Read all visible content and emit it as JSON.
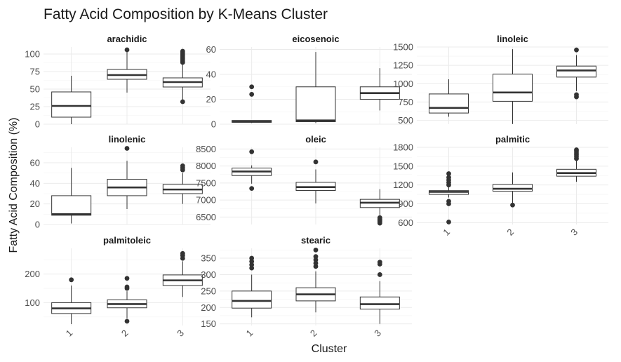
{
  "chart_data": {
    "type": "boxplot",
    "title": "Fatty Acid Composition by K-Means Cluster",
    "xlabel": "Cluster",
    "ylabel": "Fatty Acid Composition (%)",
    "categories": [
      "1",
      "2",
      "3"
    ],
    "facet_layout": {
      "columns": 3,
      "rows": 3
    },
    "panels": [
      {
        "name": "arachidic",
        "ylim": [
          0,
          110
        ],
        "yticks": [
          0,
          25,
          50,
          75,
          100
        ],
        "boxes": [
          {
            "cluster": "1",
            "min": 0,
            "q1": 10,
            "median": 26,
            "q3": 46,
            "max": 69,
            "outliers": []
          },
          {
            "cluster": "2",
            "min": 45,
            "q1": 64,
            "median": 70,
            "q3": 78,
            "max": 105,
            "outliers": [
              106
            ]
          },
          {
            "cluster": "3",
            "min": 34,
            "q1": 53,
            "median": 60,
            "q3": 66,
            "max": 85,
            "outliers": [
              32,
              88,
              90,
              92,
              94,
              96,
              98,
              100,
              102,
              104
            ]
          }
        ]
      },
      {
        "name": "eicosenoic",
        "ylim": [
          0,
          62
        ],
        "yticks": [
          0,
          20,
          40,
          60
        ],
        "boxes": [
          {
            "cluster": "1",
            "min": 1,
            "q1": 1.5,
            "median": 2,
            "q3": 3,
            "max": 3,
            "outliers": [
              24,
              30
            ]
          },
          {
            "cluster": "2",
            "min": 1,
            "q1": 2,
            "median": 3,
            "q3": 30,
            "max": 58,
            "outliers": []
          },
          {
            "cluster": "3",
            "min": 11,
            "q1": 20,
            "median": 25,
            "q3": 30,
            "max": 45,
            "outliers": []
          }
        ]
      },
      {
        "name": "linoleic",
        "ylim": [
          448,
          1500
        ],
        "yticks": [
          500,
          750,
          1000,
          1250,
          1500
        ],
        "boxes": [
          {
            "cluster": "1",
            "min": 550,
            "q1": 600,
            "median": 670,
            "q3": 860,
            "max": 1060,
            "outliers": []
          },
          {
            "cluster": "2",
            "min": 450,
            "q1": 760,
            "median": 880,
            "q3": 1130,
            "max": 1470,
            "outliers": []
          },
          {
            "cluster": "3",
            "min": 900,
            "q1": 1090,
            "median": 1180,
            "q3": 1240,
            "max": 1390,
            "outliers": [
              820,
              850,
              1460
            ]
          }
        ]
      },
      {
        "name": "linolenic",
        "ylim": [
          0,
          75
        ],
        "yticks": [
          0,
          20,
          40,
          60
        ],
        "boxes": [
          {
            "cluster": "1",
            "min": 1,
            "q1": 9,
            "median": 10,
            "q3": 28,
            "max": 55,
            "outliers": []
          },
          {
            "cluster": "2",
            "min": 15,
            "q1": 28,
            "median": 36,
            "q3": 44,
            "max": 62,
            "outliers": [
              74
            ]
          },
          {
            "cluster": "3",
            "min": 20,
            "q1": 30,
            "median": 34,
            "q3": 39,
            "max": 50,
            "outliers": [
              53,
              55,
              57
            ]
          }
        ]
      },
      {
        "name": "oleic",
        "ylim": [
          6280,
          8550
        ],
        "yticks": [
          6500,
          7000,
          7500,
          8000,
          8500
        ],
        "boxes": [
          {
            "cluster": "1",
            "min": 7480,
            "q1": 7720,
            "median": 7840,
            "q3": 7940,
            "max": 8020,
            "outliers": [
              7340,
              8420
            ]
          },
          {
            "cluster": "2",
            "min": 6900,
            "q1": 7280,
            "median": 7380,
            "q3": 7520,
            "max": 7900,
            "outliers": [
              8120
            ]
          },
          {
            "cluster": "3",
            "min": 6560,
            "q1": 6780,
            "median": 6920,
            "q3": 7020,
            "max": 7320,
            "outliers": [
              6320,
              6360,
              6400,
              6440,
              6480
            ]
          }
        ]
      },
      {
        "name": "palmitic",
        "ylim": [
          570,
          1800
        ],
        "yticks": [
          600,
          900,
          1200,
          1500,
          1800
        ],
        "boxes": [
          {
            "cluster": "1",
            "min": 1000,
            "q1": 1050,
            "median": 1090,
            "q3": 1110,
            "max": 1180,
            "outliers": [
              610,
              900,
              940,
              1200,
              1240,
              1280,
              1320,
              1380
            ]
          },
          {
            "cluster": "2",
            "min": 900,
            "q1": 1100,
            "median": 1140,
            "q3": 1210,
            "max": 1400,
            "outliers": [
              880
            ]
          },
          {
            "cluster": "3",
            "min": 1250,
            "q1": 1340,
            "median": 1390,
            "q3": 1450,
            "max": 1600,
            "outliers": [
              1620,
              1650,
              1680,
              1710,
              1740,
              1760
            ]
          }
        ]
      },
      {
        "name": "palmitoleic",
        "ylim": [
          20,
          290
        ],
        "yticks": [
          100,
          200
        ],
        "boxes": [
          {
            "cluster": "1",
            "min": 25,
            "q1": 62,
            "median": 80,
            "q3": 100,
            "max": 160,
            "outliers": [
              180
            ]
          },
          {
            "cluster": "2",
            "min": 45,
            "q1": 82,
            "median": 95,
            "q3": 110,
            "max": 140,
            "outliers": [
              35,
              150,
              155,
              185
            ]
          },
          {
            "cluster": "3",
            "min": 120,
            "q1": 160,
            "median": 178,
            "q3": 197,
            "max": 245,
            "outliers": [
              255,
              265,
              272
            ]
          }
        ]
      },
      {
        "name": "stearic",
        "ylim": [
          145,
          380
        ],
        "yticks": [
          150,
          200,
          250,
          300,
          350
        ],
        "boxes": [
          {
            "cluster": "1",
            "min": 170,
            "q1": 198,
            "median": 220,
            "q3": 250,
            "max": 300,
            "outliers": [
              320,
              330,
              340,
              350
            ]
          },
          {
            "cluster": "2",
            "min": 185,
            "q1": 220,
            "median": 240,
            "q3": 260,
            "max": 310,
            "outliers": [
              325,
              335,
              345,
              355,
              375
            ]
          },
          {
            "cluster": "3",
            "min": 150,
            "q1": 195,
            "median": 210,
            "q3": 232,
            "max": 280,
            "outliers": [
              300,
              332,
              338
            ]
          }
        ]
      }
    ]
  }
}
